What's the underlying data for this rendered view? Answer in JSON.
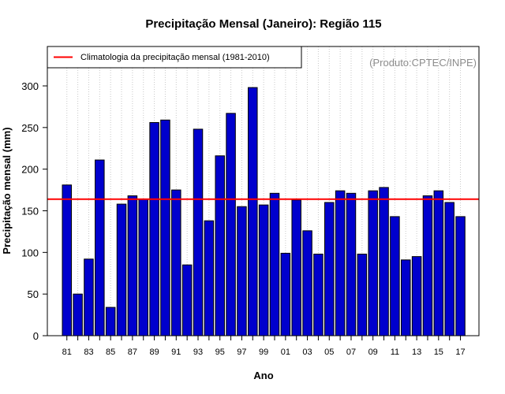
{
  "chart_data": {
    "type": "bar",
    "title": "Precipitação Mensal (Janeiro): Região 115",
    "xlabel": "Ano",
    "ylabel": "Precipitação mensal (mm)",
    "ylim": [
      0,
      325
    ],
    "yticks": [
      0,
      50,
      100,
      150,
      200,
      250,
      300
    ],
    "categories": [
      "81",
      "82",
      "83",
      "84",
      "85",
      "86",
      "87",
      "88",
      "89",
      "90",
      "91",
      "92",
      "93",
      "94",
      "95",
      "96",
      "97",
      "98",
      "99",
      "00",
      "01",
      "02",
      "03",
      "04",
      "05",
      "06",
      "07",
      "08",
      "09",
      "10",
      "11",
      "12",
      "13",
      "14",
      "15",
      "16",
      "17"
    ],
    "xtick_labels": [
      "81",
      "83",
      "85",
      "87",
      "89",
      "91",
      "93",
      "95",
      "97",
      "99",
      "01",
      "03",
      "05",
      "07",
      "09",
      "11",
      "13",
      "15",
      "17"
    ],
    "values": [
      181,
      50,
      92,
      211,
      34,
      158,
      168,
      164,
      256,
      259,
      175,
      85,
      248,
      138,
      216,
      267,
      155,
      298,
      157,
      171,
      99,
      163,
      126,
      98,
      160,
      174,
      171,
      98,
      174,
      178,
      143,
      91,
      95,
      168,
      174,
      160,
      143
    ],
    "climatology": 164,
    "grid": "vertical-dotted",
    "legend": {
      "label": "Climatologia da precipitação mensal (1981-2010)",
      "color": "#ff0000",
      "placement": "top-left"
    },
    "credit": "(Produto:CPTEC/INPE)",
    "bar_color": "#0000cd",
    "bar_edge_color": "#000000"
  }
}
